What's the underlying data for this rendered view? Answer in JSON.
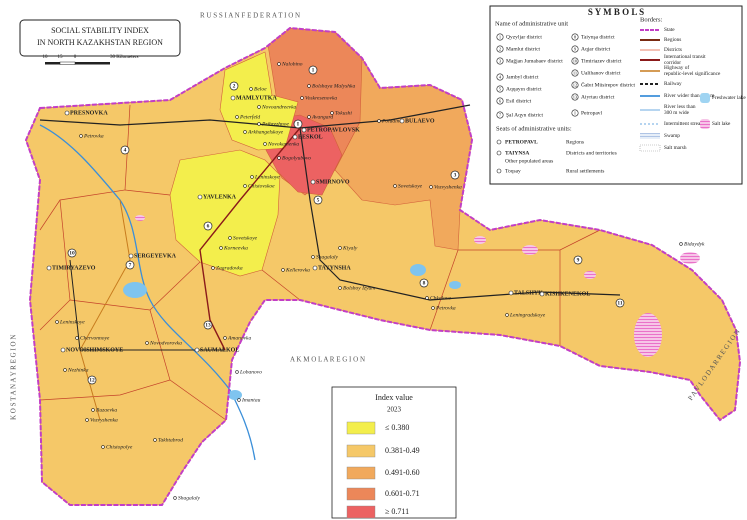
{
  "title": [
    "SOCIAL STABILITY INDEX",
    "IN NORTH KAZAKHSTAN REGION"
  ],
  "scale": [
    "10",
    "15",
    "0",
    "30 Kilometers"
  ],
  "neighbours": [
    "R U S S I A N   F E D E R A T I O N",
    "K O S T A N A Y   R E G I O N",
    "A K M O L A   R E G I O N",
    "P A V L O D A R   R E G I O N"
  ],
  "symbols": {
    "title": "S Y M B O L S",
    "units_heading": "Name of administrative unit",
    "districts": [
      {
        "number": "1",
        "name": "Qyzyljar district"
      },
      {
        "number": "2",
        "name": "Mamlut district"
      },
      {
        "number": "3",
        "name": "Mağjan Jumabaev district"
      },
      {
        "number": "4",
        "name": "Jambyl district"
      },
      {
        "number": "5",
        "name": "Aqqayın district"
      },
      {
        "number": "6",
        "name": "Esil district"
      },
      {
        "number": "7",
        "name": "Şal Aqyn district"
      },
      {
        "number": "8",
        "name": "Taiynşa district"
      },
      {
        "number": "9",
        "name": "Aqjar district"
      },
      {
        "number": "10",
        "name": "Timiriazev district"
      },
      {
        "number": "11",
        "name": "Ualihanov district"
      },
      {
        "number": "12",
        "name": "Ğabıt Müsirepov district"
      },
      {
        "number": "13",
        "name": "Aiyrtau district"
      },
      {
        "number": "I",
        "name": "Petropavl"
      }
    ],
    "seats_heading": "Seats of administrative units:",
    "seats": [
      {
        "example": "PETROPAVL",
        "meaning": "Regions"
      },
      {
        "example": "TAIYNSA",
        "meaning": "Districts and territories"
      },
      {
        "example": "Other populated areas",
        "meaning": ""
      },
      {
        "example": "Toqsay",
        "meaning": "Rural settlements"
      }
    ],
    "borders_heading": "Borders:",
    "borders": [
      "State",
      "Regions",
      "Districts",
      "International transit corridor",
      "Highway of republic-level significance",
      "Railway",
      "River wider than 300 m",
      "River less than 300 m wide",
      "Intermittent stream",
      "Swamp",
      "Salt marsh"
    ],
    "lakes": [
      "Freshwater lake",
      "Salt lake"
    ]
  },
  "index_legend": {
    "title": "Index value",
    "year": "2023",
    "classes": [
      {
        "label": "≤ 0.380",
        "color": "#f3ee4c"
      },
      {
        "label": "0.381-0.49",
        "color": "#f5c868"
      },
      {
        "label": "0.491-0.60",
        "color": "#f1a95c"
      },
      {
        "label": "0.601-0.71",
        "color": "#ec8759"
      },
      {
        "label": "≥ 0.711",
        "color": "#ec6262"
      }
    ]
  },
  "district_numbers": [
    "1",
    "2",
    "3",
    "4",
    "5",
    "6",
    "7",
    "8",
    "9",
    "10",
    "11",
    "12",
    "13",
    "I"
  ],
  "places": [
    "Nalobino",
    "Bolshaya Malyshka",
    "Voskresenovka",
    "Beloe",
    "MAMLYUTKA",
    "Novoandreevka",
    "Peterfeld",
    "Pribrezhnoe",
    "Arkhangelskoye",
    "PETROPAVLOVSK",
    "BESKOL",
    "Novokamenka",
    "Bogolyubovo",
    "Avangard",
    "Tokushi",
    "Poludino",
    "BULAEVO",
    "PRESNOVKA",
    "Petrovka",
    "Leninskoye",
    "Chistovskoe",
    "YAVLENKA",
    "SMIRNOVO",
    "Sovetskoye",
    "Vozvyshenka",
    "Kiyaly",
    "Shagalaly",
    "Sovetskoye",
    "Korneevka",
    "Zagradovka",
    "Kellerovka",
    "TAYYNSHA",
    "TIMIRYAZEVO",
    "SERGEYEVKA",
    "Bolshoy Izyum",
    "Chkalovo",
    "Petrovka",
    "Leningradskoye",
    "TALSHYK",
    "KISHKENEKOL",
    "Bidaydyk",
    "Leninskoye",
    "Chervonnoye",
    "NOVOISHIMSKOYE",
    "Novodvorovka",
    "Amanovka",
    "SAUMALKOL",
    "Nezhinka",
    "Lobanovo",
    "Imantau",
    "Ruzaevka",
    "Vozvyshenka",
    "Takhtabrod",
    "Chistopolye",
    "Shagalaly"
  ]
}
